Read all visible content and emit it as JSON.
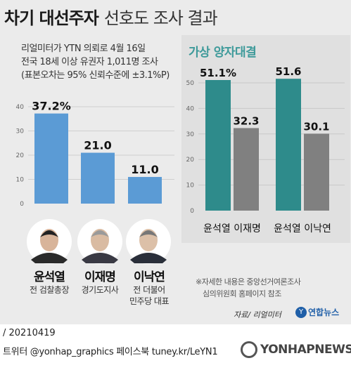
{
  "header": {
    "title_bold": "차기 대선주자",
    "title_light": "선호도 조사 결과"
  },
  "source_lines": [
    "리얼미터가 YTN 의뢰로 4월 16일",
    "전국 18세 이상 유권자 1,011명 조사",
    "(표본오차는 95% 신뢰수준에 ±3.1%P)"
  ],
  "right_title": "가상 양자대결",
  "candidates": [
    {
      "name": "윤석열",
      "role_line1": "전 검찰총장",
      "role_line2": ""
    },
    {
      "name": "이재명",
      "role_line1": "경기도지사",
      "role_line2": ""
    },
    {
      "name": "이낙연",
      "role_line1": "전 더불어",
      "role_line2": "민주당 대표"
    }
  ],
  "chart_data": [
    {
      "type": "bar",
      "categories": [
        "윤석열",
        "이재명",
        "이낙연"
      ],
      "values": [
        37.2,
        21.0,
        11.0
      ],
      "value_labels": [
        "37.2%",
        "21.0",
        "11.0"
      ],
      "ylim": [
        0,
        40
      ],
      "yticks": [
        0,
        10,
        20,
        30,
        40
      ],
      "grid": true,
      "color": "#5b9bd5"
    },
    {
      "type": "bar",
      "title": "가상 양자대결",
      "categories": [
        "윤석열 이재명",
        "윤석열 이낙연"
      ],
      "series": [
        {
          "values": [
            51.1,
            51.6
          ],
          "labels": [
            "51.1%",
            "51.6"
          ],
          "color": "#2e8b8b"
        },
        {
          "values": [
            32.3,
            30.1
          ],
          "labels": [
            "32.3",
            "30.1"
          ],
          "color": "#808080"
        }
      ],
      "ylim": [
        0,
        50
      ],
      "yticks": [
        0,
        10,
        20,
        30,
        40,
        50
      ],
      "grid": true
    }
  ],
  "note": [
    "※자세한 내용은 중앙선거여론조사",
    "심의위원회 홈페이지 참조"
  ],
  "credit": "자료/ 리얼미터",
  "logo": {
    "symbol": "Y",
    "text": "연합뉴스"
  },
  "footer": {
    "date": "/ 20210419",
    "sns": "트위터 @yonhap_graphics  페이스북 tuney.kr/LeYN1"
  },
  "watermark": "YONHAPNEWS"
}
